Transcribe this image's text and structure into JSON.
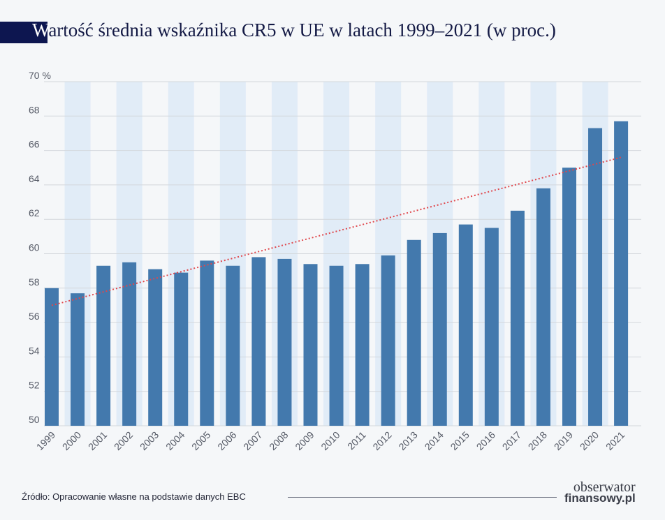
{
  "chart_data": {
    "type": "bar",
    "title": "Wartość średnia wskaźnika CR5 w UE w latach 1999–2021 (w proc.)",
    "title_first_letter": "W",
    "title_rest": "artość średnia wskaźnika CR5 w UE w latach 1999–2021 (w proc.)",
    "xlabel": "",
    "ylabel": "",
    "ylim": [
      50,
      70
    ],
    "yticks": [
      50,
      52,
      54,
      56,
      58,
      60,
      62,
      64,
      66,
      68,
      70
    ],
    "ytick_labels": [
      "50",
      "52",
      "54",
      "56",
      "58",
      "60",
      "62",
      "64",
      "66",
      "68",
      "70 %"
    ],
    "grid": true,
    "categories": [
      "1999",
      "2000",
      "2001",
      "2002",
      "2003",
      "2004",
      "2005",
      "2006",
      "2007",
      "2008",
      "2009",
      "2010",
      "2011",
      "2012",
      "2013",
      "2014",
      "2015",
      "2016",
      "2017",
      "2018",
      "2019",
      "2020",
      "2021"
    ],
    "values": [
      58.0,
      57.7,
      59.3,
      59.5,
      59.1,
      58.9,
      59.6,
      59.3,
      59.8,
      59.7,
      59.4,
      59.3,
      59.4,
      59.9,
      60.8,
      61.2,
      61.7,
      61.5,
      62.5,
      63.8,
      65.0,
      67.3,
      67.7
    ],
    "trendline": {
      "type": "linear",
      "start": 57.0,
      "end": 65.6,
      "color": "#e0474c"
    },
    "bar_color": "#4379ad",
    "band_color": "#e1ecf7"
  },
  "source": "Źródło: Opracowanie własne na podstawie danych EBC",
  "logo": {
    "line1": "obserwator",
    "line2": "finansowy.pl"
  }
}
